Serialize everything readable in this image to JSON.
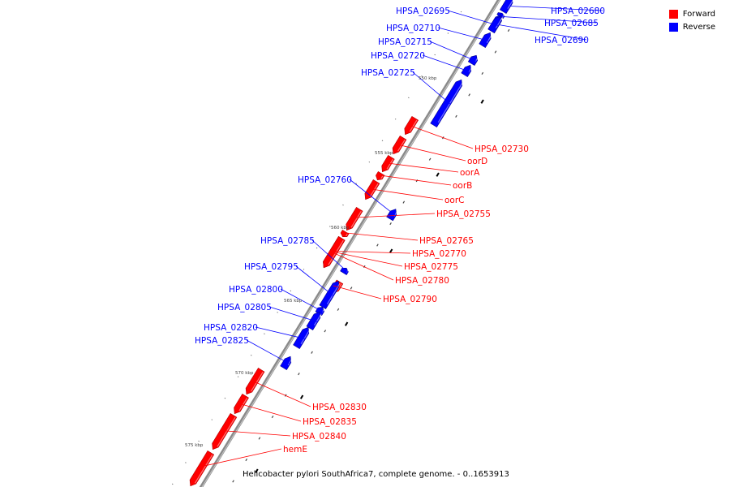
{
  "legend": {
    "forward_label": "Forward",
    "reverse_label": "Reverse",
    "forward_color": "#ff0000",
    "reverse_color": "#0000ff"
  },
  "caption": "Helicobacter pylori SouthAfrica7, complete genome. - 0..1653913",
  "scale_labels": [
    "550 kbp",
    "555 kbp",
    "560 kbp",
    "565 kbp",
    "570 kbp",
    "575 kbp"
  ],
  "genes": [
    {
      "id": "HPSA_02680",
      "strand": "reverse"
    },
    {
      "id": "HPSA_02685",
      "strand": "reverse"
    },
    {
      "id": "HPSA_02690",
      "strand": "reverse"
    },
    {
      "id": "HPSA_02695",
      "strand": "reverse"
    },
    {
      "id": "HPSA_02710",
      "strand": "reverse"
    },
    {
      "id": "HPSA_02715",
      "strand": "reverse"
    },
    {
      "id": "HPSA_02720",
      "strand": "reverse"
    },
    {
      "id": "HPSA_02725",
      "strand": "reverse"
    },
    {
      "id": "HPSA_02730",
      "strand": "forward"
    },
    {
      "id": "oorD",
      "strand": "forward"
    },
    {
      "id": "oorA",
      "strand": "forward"
    },
    {
      "id": "oorB",
      "strand": "forward"
    },
    {
      "id": "oorC",
      "strand": "forward"
    },
    {
      "id": "HPSA_02755",
      "strand": "forward"
    },
    {
      "id": "HPSA_02760",
      "strand": "reverse"
    },
    {
      "id": "HPSA_02765",
      "strand": "forward"
    },
    {
      "id": "HPSA_02770",
      "strand": "forward"
    },
    {
      "id": "HPSA_02775",
      "strand": "forward"
    },
    {
      "id": "HPSA_02780",
      "strand": "forward"
    },
    {
      "id": "HPSA_02785",
      "strand": "reverse"
    },
    {
      "id": "HPSA_02790",
      "strand": "forward"
    },
    {
      "id": "HPSA_02795",
      "strand": "reverse"
    },
    {
      "id": "HPSA_02800",
      "strand": "reverse"
    },
    {
      "id": "HPSA_02805",
      "strand": "reverse"
    },
    {
      "id": "HPSA_02820",
      "strand": "reverse"
    },
    {
      "id": "HPSA_02825",
      "strand": "reverse"
    },
    {
      "id": "HPSA_02830",
      "strand": "forward"
    },
    {
      "id": "HPSA_02835",
      "strand": "forward"
    },
    {
      "id": "HPSA_02840",
      "strand": "forward"
    },
    {
      "id": "hemE",
      "strand": "forward"
    }
  ]
}
